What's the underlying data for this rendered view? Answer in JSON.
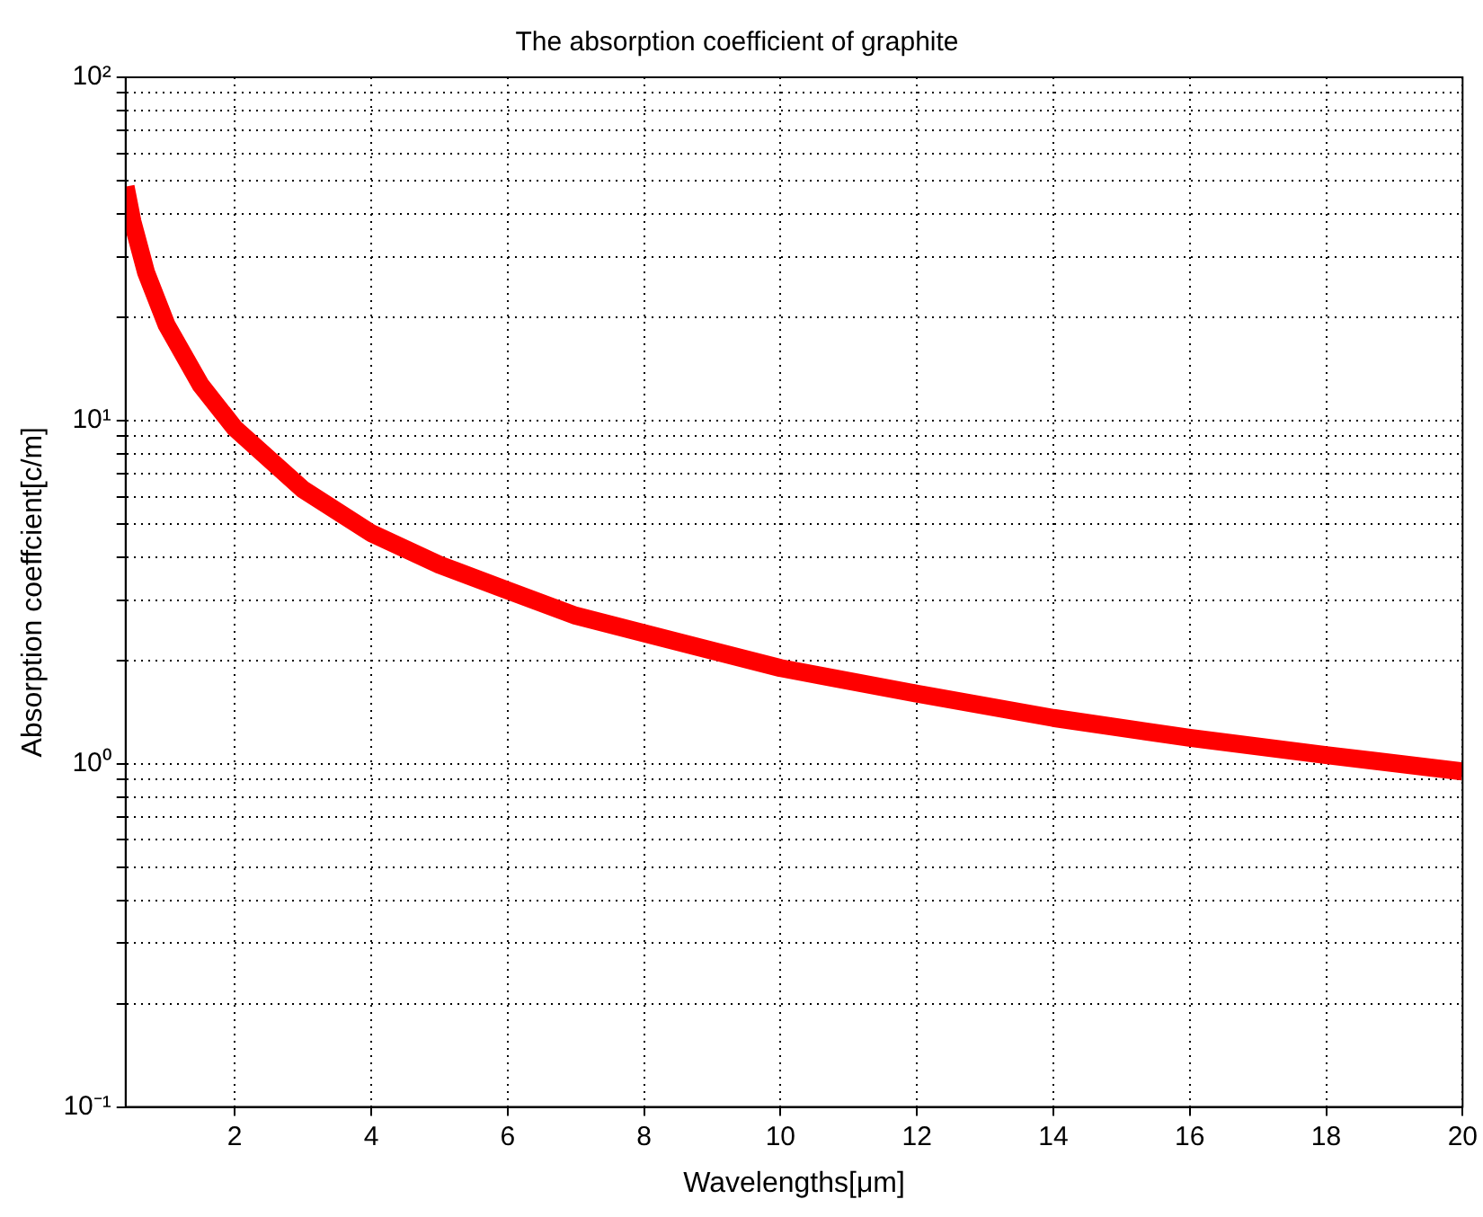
{
  "chart_data": {
    "type": "line",
    "title": "The absorption coefficient of graphite",
    "xlabel": "Wavelengths[μm]",
    "ylabel": "Absorption coeffcient[c/m]",
    "log": "y",
    "grid": true,
    "line_style": "solid",
    "marker": "none",
    "xlim": [
      0.4,
      20
    ],
    "xticks": [
      2,
      4,
      6,
      8,
      10,
      12,
      14,
      16,
      18,
      20
    ],
    "ylim": [
      0.1,
      100
    ],
    "yticks": [
      {
        "value": 0.1,
        "label": "10⁻¹"
      },
      {
        "value": 0.2,
        "label": null
      },
      {
        "value": 0.3,
        "label": null
      },
      {
        "value": 0.4,
        "label": null
      },
      {
        "value": 0.5,
        "label": null
      },
      {
        "value": 0.6,
        "label": null
      },
      {
        "value": 0.7,
        "label": null
      },
      {
        "value": 0.8,
        "label": null
      },
      {
        "value": 0.9,
        "label": null
      },
      {
        "value": 1,
        "label": "10⁰"
      },
      {
        "value": 2,
        "label": null
      },
      {
        "value": 3,
        "label": null
      },
      {
        "value": 4,
        "label": null
      },
      {
        "value": 5,
        "label": null
      },
      {
        "value": 6,
        "label": null
      },
      {
        "value": 7,
        "label": null
      },
      {
        "value": 8,
        "label": null
      },
      {
        "value": 9,
        "label": null
      },
      {
        "value": 10,
        "label": "10¹"
      },
      {
        "value": 20,
        "label": null
      },
      {
        "value": 30,
        "label": null
      },
      {
        "value": 40,
        "label": null
      },
      {
        "value": 50,
        "label": null
      },
      {
        "value": 60,
        "label": null
      },
      {
        "value": 70,
        "label": null
      },
      {
        "value": 80,
        "label": null
      },
      {
        "value": 90,
        "label": null
      },
      {
        "value": 100,
        "label": "10²"
      }
    ],
    "x": [
      0.4,
      0.5,
      0.7,
      1,
      1.5,
      2,
      3,
      4,
      5,
      6,
      7,
      8,
      10,
      12,
      14,
      16,
      18,
      20
    ],
    "series": [
      {
        "color": "#ff0000",
        "values": [
          48,
          38,
          27,
          19,
          12.7,
          9.5,
          6.3,
          4.7,
          3.8,
          3.2,
          2.7,
          2.4,
          1.9,
          1.6,
          1.36,
          1.19,
          1.06,
          0.95
        ]
      }
    ]
  }
}
